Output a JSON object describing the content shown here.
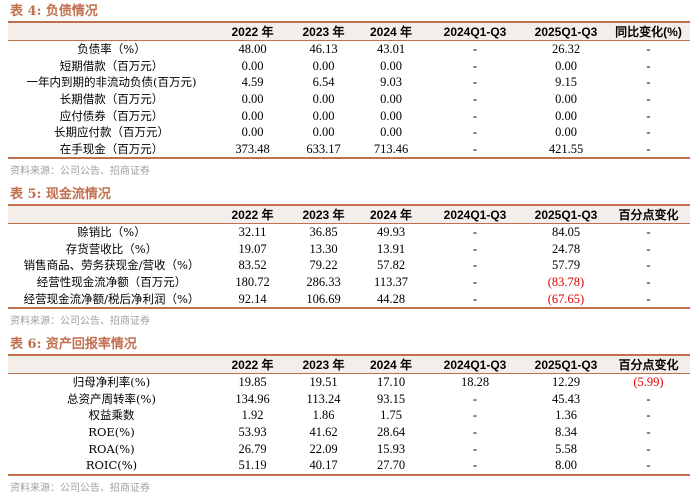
{
  "colors": {
    "accent": "#c0704f",
    "header_bg": "#f4eeeb",
    "negative": "#e00000"
  },
  "tables": [
    {
      "title": "表 4:  负债情况",
      "headers": [
        "",
        "2022 年",
        "2023 年",
        "2024 年",
        "2024Q1-Q3",
        "2025Q1-Q3",
        "同比变化(%)"
      ],
      "rows": [
        [
          "负债率（%）",
          "48.00",
          "46.13",
          "43.01",
          "-",
          "26.32",
          "-"
        ],
        [
          "短期借款（百万元）",
          "0.00",
          "0.00",
          "0.00",
          "-",
          "0.00",
          "-"
        ],
        [
          "一年内到期的非流动负债(百万元)",
          "4.59",
          "6.54",
          "9.03",
          "-",
          "9.15",
          "-"
        ],
        [
          "长期借款（百万元）",
          "0.00",
          "0.00",
          "0.00",
          "-",
          "0.00",
          "-"
        ],
        [
          "应付债券（百万元）",
          "0.00",
          "0.00",
          "0.00",
          "-",
          "0.00",
          "-"
        ],
        [
          "长期应付款（百万元）",
          "0.00",
          "0.00",
          "0.00",
          "-",
          "0.00",
          "-"
        ],
        [
          "在手现金（百万元）",
          "373.48",
          "633.17",
          "713.46",
          "-",
          "421.55",
          "-"
        ]
      ],
      "source": "资料来源：公司公告、招商证券"
    },
    {
      "title": "表 5:  现金流情况",
      "headers": [
        "",
        "2022 年",
        "2023 年",
        "2024 年",
        "2024Q1-Q3",
        "2025Q1-Q3",
        "百分点变化"
      ],
      "rows": [
        [
          "赊销比（%）",
          "32.11",
          "36.85",
          "49.93",
          "-",
          "84.05",
          "-"
        ],
        [
          "存货营收比（%）",
          "19.07",
          "13.30",
          "13.91",
          "-",
          "24.78",
          "-"
        ],
        [
          "销售商品、劳务获现金/营收（%）",
          "83.52",
          "79.22",
          "57.82",
          "-",
          "57.79",
          "-"
        ],
        [
          "经营性现金流净额（百万元）",
          "180.72",
          "286.33",
          "113.37",
          "-",
          "(83.78)",
          "-"
        ],
        [
          "经营现金流净额/税后净利润（%）",
          "92.14",
          "106.69",
          "44.28",
          "-",
          "(67.65)",
          "-"
        ]
      ],
      "source": "资料来源：公司公告、招商证券"
    },
    {
      "title": "表 6:  资产回报率情况",
      "headers": [
        "",
        "2022 年",
        "2023 年",
        "2024 年",
        "2024Q1-Q3",
        "2025Q1-Q3",
        "百分点变化"
      ],
      "rows": [
        [
          "归母净利率(%)",
          "19.85",
          "19.51",
          "17.10",
          "18.28",
          "12.29",
          "(5.99)"
        ],
        [
          "总资产周转率(%)",
          "134.96",
          "113.24",
          "93.15",
          "-",
          "45.43",
          "-"
        ],
        [
          "权益乘数",
          "1.92",
          "1.86",
          "1.75",
          "-",
          "1.36",
          "-"
        ],
        [
          "ROE(%)",
          "53.93",
          "41.62",
          "28.64",
          "-",
          "8.34",
          "-"
        ],
        [
          "ROA(%)",
          "26.79",
          "22.09",
          "15.93",
          "-",
          "5.58",
          "-"
        ],
        [
          "ROIC(%)",
          "51.19",
          "40.17",
          "27.70",
          "-",
          "8.00",
          "-"
        ]
      ],
      "source": "资料来源：公司公告、招商证券"
    }
  ]
}
